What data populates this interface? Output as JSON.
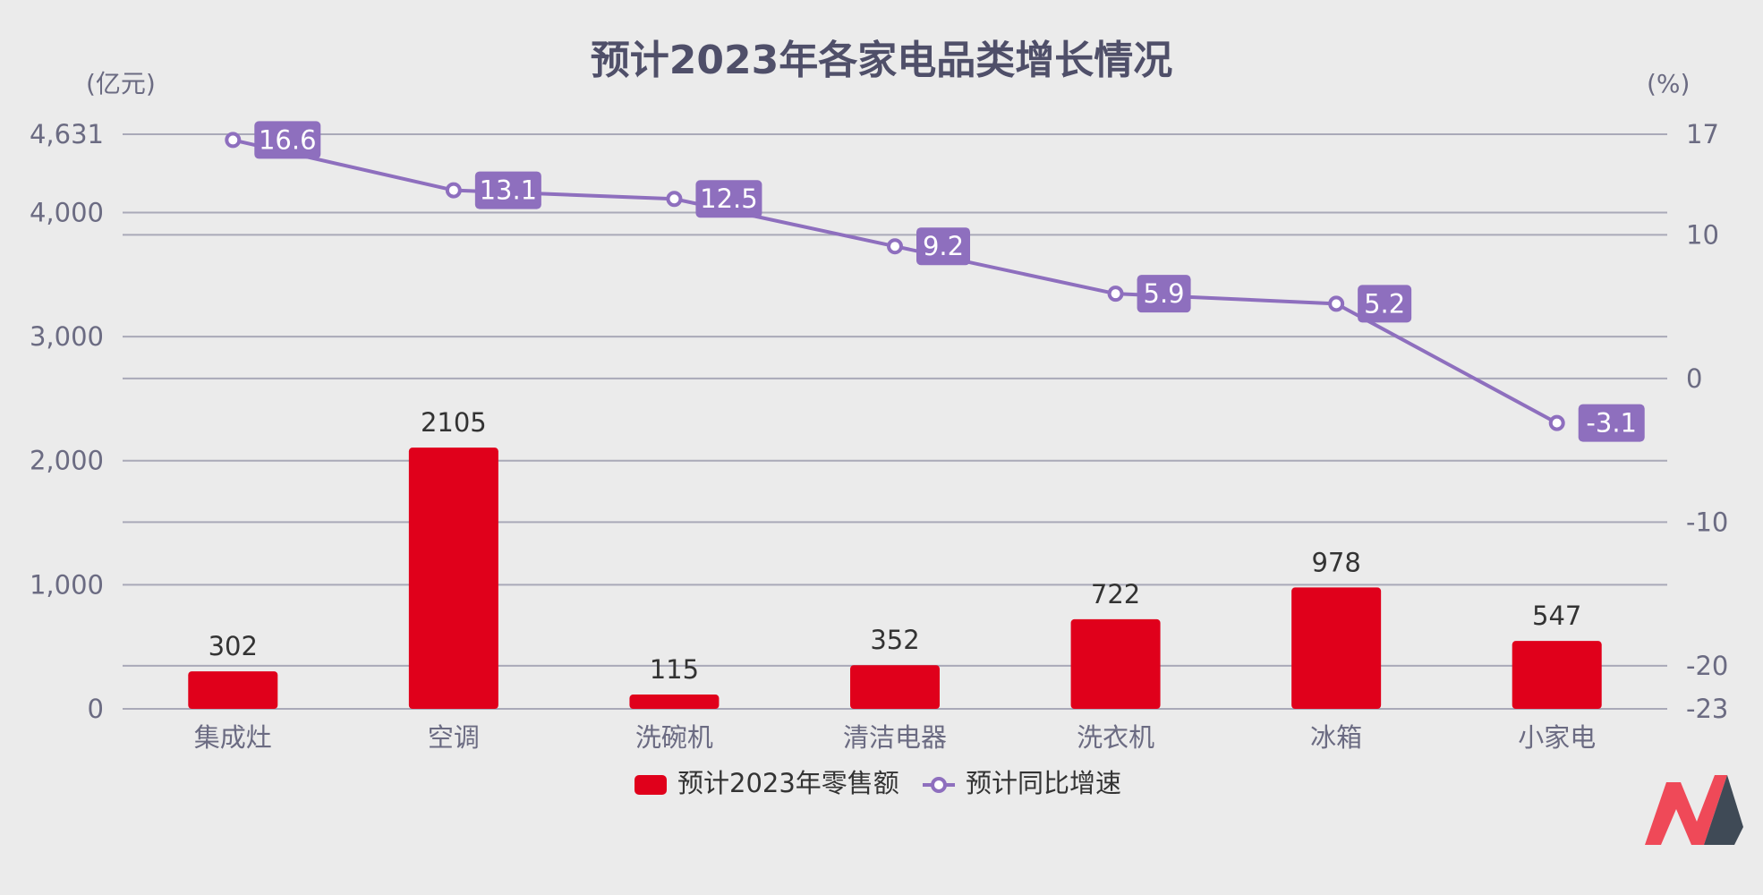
{
  "chart_data": {
    "type": "bar",
    "title": "预计2023年各家电品类增长情况",
    "left_axis_unit": "(亿元)",
    "right_axis_unit": "(%)",
    "categories": [
      "集成灶",
      "空调",
      "洗碗机",
      "清洁电器",
      "洗衣机",
      "冰箱",
      "小家电"
    ],
    "series": [
      {
        "name": "预计2023年零售额",
        "kind": "bar",
        "axis": "left",
        "color": "#e0001b",
        "values": [
          302,
          2105,
          115,
          352,
          722,
          978,
          547
        ],
        "labels": [
          "302",
          "2105",
          "115",
          "352",
          "722",
          "978",
          "547"
        ]
      },
      {
        "name": "预计同比增速",
        "kind": "line",
        "axis": "right",
        "color": "#8e6fbe",
        "values": [
          16.6,
          13.1,
          12.5,
          9.2,
          5.9,
          5.2,
          -3.1
        ],
        "labels": [
          "16.6",
          "13.1",
          "12.5",
          "9.2",
          "5.9",
          "5.2",
          "-3.1"
        ]
      }
    ],
    "left_axis": {
      "ylim": [
        0,
        4631
      ],
      "ticks": [
        0,
        1000,
        2000,
        3000,
        4000,
        4631
      ],
      "tick_labels": [
        "0",
        "1,000",
        "2,000",
        "3,000",
        "4,000",
        "4,631"
      ]
    },
    "right_axis": {
      "ylim": [
        -23,
        17
      ],
      "ticks": [
        -23,
        -20,
        -10,
        0,
        10,
        17
      ],
      "tick_labels": [
        "-23",
        "-20",
        "-10",
        "0",
        "10",
        "17"
      ]
    },
    "grid": true,
    "legend": "bottom-center",
    "legend_entries": [
      "预计2023年零售额",
      "预计同比增速"
    ]
  },
  "brand_logo": "red-black-m-logo"
}
